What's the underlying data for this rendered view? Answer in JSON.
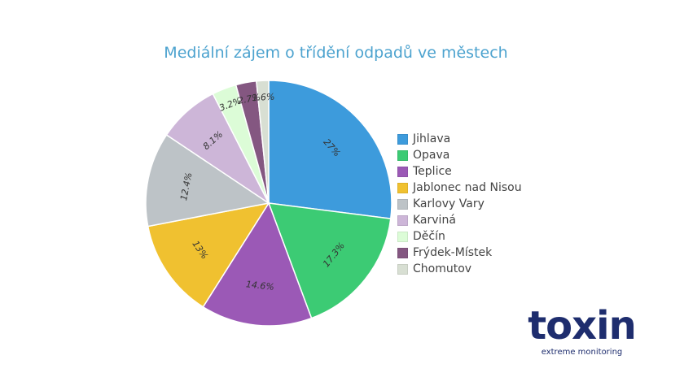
{
  "chart_data": {
    "type": "pie",
    "title": "Mediální zájem o třídění odpadů ve městech",
    "slices": [
      {
        "name": "Jihlava",
        "value": 27,
        "label": "27%",
        "color": "#3d9bdc"
      },
      {
        "name": "Opava",
        "value": 17.3,
        "label": "17.3%",
        "color": "#3ccb74"
      },
      {
        "name": "Teplice",
        "value": 14.6,
        "label": "14.6%",
        "color": "#9b59b6"
      },
      {
        "name": "Jablonec nad Nisou",
        "value": 13,
        "label": "13%",
        "color": "#f0c130"
      },
      {
        "name": "Karlovy Vary",
        "value": 12.4,
        "label": "12.4%",
        "color": "#bdc3c7"
      },
      {
        "name": "Karviná",
        "value": 8.1,
        "label": "8.1%",
        "color": "#cdb6d8"
      },
      {
        "name": "Děčín",
        "value": 3.2,
        "label": "3.2%",
        "color": "#dcfcd7"
      },
      {
        "name": "Frýdek-Místek",
        "value": 2.7,
        "label": "2.7%",
        "color": "#845781"
      },
      {
        "name": "Chomutov",
        "value": 1.6,
        "label": "1.6%",
        "color": "#d8dfd3"
      }
    ],
    "legend_position": "right"
  },
  "brand": {
    "name": "toxin",
    "tagline": "extreme monitoring"
  }
}
